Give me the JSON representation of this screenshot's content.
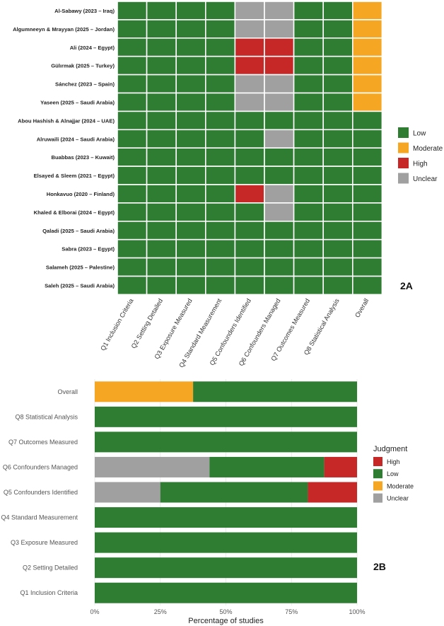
{
  "colors": {
    "Low": "#2e7d32",
    "Moderate": "#f5a623",
    "High": "#c62828",
    "Unclear": "#a0a0a0"
  },
  "chart_data": [
    {
      "type": "heatmap",
      "panel_label": "2A",
      "columns": [
        "Q1 Inclusion Criteria",
        "Q2 Setting Detailed",
        "Q3 Exposure Measured",
        "Q4 Standard Measurement",
        "Q5 Confounders Identified",
        "Q6 Confounders Managed",
        "Q7 Outcomes Measured",
        "Q8 Statistical Analysis",
        "Overall"
      ],
      "rows": [
        {
          "study": "Al-Sabawy (2023 – Iraq)",
          "values": [
            "Low",
            "Low",
            "Low",
            "Low",
            "Unclear",
            "Unclear",
            "Low",
            "Low",
            "Moderate"
          ]
        },
        {
          "study": "Algumneeyn & Mrayyan (2025 – Jordan)",
          "values": [
            "Low",
            "Low",
            "Low",
            "Low",
            "Unclear",
            "Unclear",
            "Low",
            "Low",
            "Moderate"
          ]
        },
        {
          "study": "Ali (2024 – Egypt)",
          "values": [
            "Low",
            "Low",
            "Low",
            "Low",
            "High",
            "High",
            "Low",
            "Low",
            "Moderate"
          ]
        },
        {
          "study": "Gülırmak (2025 – Turkey)",
          "values": [
            "Low",
            "Low",
            "Low",
            "Low",
            "High",
            "High",
            "Low",
            "Low",
            "Moderate"
          ]
        },
        {
          "study": "Sánchez (2023 – Spain)",
          "values": [
            "Low",
            "Low",
            "Low",
            "Low",
            "Unclear",
            "Unclear",
            "Low",
            "Low",
            "Moderate"
          ]
        },
        {
          "study": "Yaseen (2025 – Saudi Arabia)",
          "values": [
            "Low",
            "Low",
            "Low",
            "Low",
            "Unclear",
            "Unclear",
            "Low",
            "Low",
            "Moderate"
          ]
        },
        {
          "study": "Abou Hashish & Alnajjar (2024 – UAE)",
          "values": [
            "Low",
            "Low",
            "Low",
            "Low",
            "Low",
            "Low",
            "Low",
            "Low",
            "Low"
          ]
        },
        {
          "study": "Alruwaili (2024 – Saudi Arabia)",
          "values": [
            "Low",
            "Low",
            "Low",
            "Low",
            "Low",
            "Unclear",
            "Low",
            "Low",
            "Low"
          ]
        },
        {
          "study": "Buabbas (2023 – Kuwait)",
          "values": [
            "Low",
            "Low",
            "Low",
            "Low",
            "Low",
            "Low",
            "Low",
            "Low",
            "Low"
          ]
        },
        {
          "study": "Elsayed & Sleem (2021 – Egypt)",
          "values": [
            "Low",
            "Low",
            "Low",
            "Low",
            "Low",
            "Low",
            "Low",
            "Low",
            "Low"
          ]
        },
        {
          "study": "Honkavuo (2020 – Finland)",
          "values": [
            "Low",
            "Low",
            "Low",
            "Low",
            "High",
            "Unclear",
            "Low",
            "Low",
            "Low"
          ]
        },
        {
          "study": "Khaled & Elborai (2024 – Egypt)",
          "values": [
            "Low",
            "Low",
            "Low",
            "Low",
            "Low",
            "Unclear",
            "Low",
            "Low",
            "Low"
          ]
        },
        {
          "study": "Qaladi (2025 – Saudi Arabia)",
          "values": [
            "Low",
            "Low",
            "Low",
            "Low",
            "Low",
            "Low",
            "Low",
            "Low",
            "Low"
          ]
        },
        {
          "study": "Sabra (2023 – Egypt)",
          "values": [
            "Low",
            "Low",
            "Low",
            "Low",
            "Low",
            "Low",
            "Low",
            "Low",
            "Low"
          ]
        },
        {
          "study": "Salameh (2025 – Palestine)",
          "values": [
            "Low",
            "Low",
            "Low",
            "Low",
            "Low",
            "Low",
            "Low",
            "Low",
            "Low"
          ]
        },
        {
          "study": "Saleh (2025 – Saudi Arabia)",
          "values": [
            "Low",
            "Low",
            "Low",
            "Low",
            "Low",
            "Low",
            "Low",
            "Low",
            "Low"
          ]
        }
      ],
      "legend": {
        "entries": [
          "Low",
          "Moderate",
          "High",
          "Unclear"
        ],
        "placement": "right"
      }
    },
    {
      "type": "bar",
      "orientation": "horizontal",
      "stacked": true,
      "panel_label": "2B",
      "categories": [
        "Overall",
        "Q8 Statistical Analysis",
        "Q7 Outcomes Measured",
        "Q6 Confounders Managed",
        "Q5 Confounders Identified",
        "Q4 Standard Measurement",
        "Q3 Exposure Measured",
        "Q2 Setting Detailed",
        "Q1 Inclusion Criteria"
      ],
      "series": [
        {
          "name": "Moderate",
          "values": [
            37.5,
            0,
            0,
            0,
            0,
            0,
            0,
            0,
            0
          ]
        },
        {
          "name": "Unclear",
          "values": [
            0,
            0,
            0,
            43.75,
            25,
            0,
            0,
            0,
            0
          ]
        },
        {
          "name": "Low",
          "values": [
            62.5,
            100,
            100,
            43.75,
            56.25,
            100,
            100,
            100,
            100
          ]
        },
        {
          "name": "High",
          "values": [
            0,
            0,
            0,
            12.5,
            18.75,
            0,
            0,
            0,
            0
          ]
        }
      ],
      "xlabel": "Percentage of studies",
      "xlim": [
        0,
        100
      ],
      "ticks": [
        "0%",
        "25%",
        "50%",
        "75%",
        "100%"
      ],
      "legend": {
        "title": "Judgment",
        "entries": [
          "High",
          "Low",
          "Moderate",
          "Unclear"
        ],
        "placement": "right"
      }
    }
  ]
}
